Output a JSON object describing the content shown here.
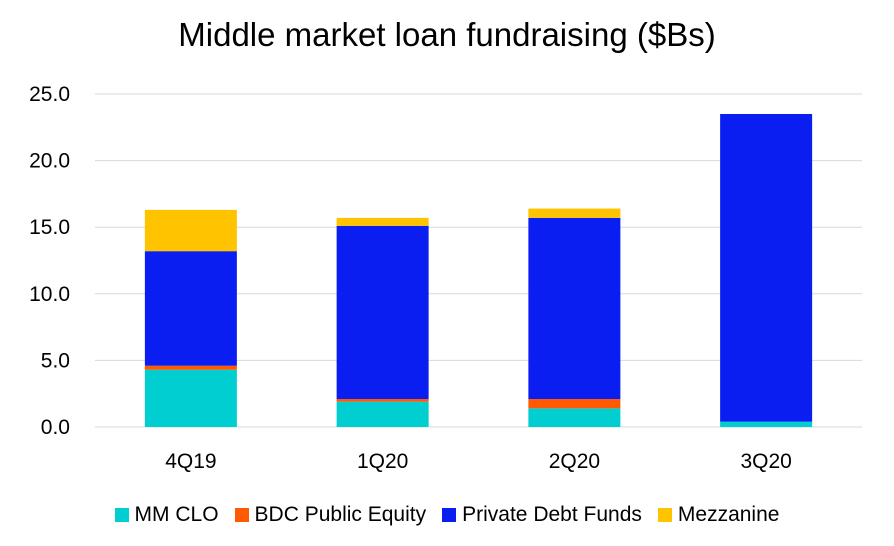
{
  "chart_data": {
    "type": "bar",
    "stacked": true,
    "title": "Middle market loan fundraising ($Bs)",
    "xlabel": "",
    "ylabel": "",
    "categories": [
      "4Q19",
      "1Q20",
      "2Q20",
      "3Q20"
    ],
    "ylim": [
      0,
      25
    ],
    "yticks": [
      "0.0",
      "5.0",
      "10.0",
      "15.0",
      "20.0",
      "25.0"
    ],
    "grid": true,
    "legend_position": "bottom",
    "series": [
      {
        "name": "MM CLO",
        "color": "#00CED1",
        "values": [
          4.3,
          1.9,
          1.4,
          0.4
        ]
      },
      {
        "name": "BDC Public Equity",
        "color": "#FF5A00",
        "values": [
          0.3,
          0.2,
          0.7,
          0.0
        ]
      },
      {
        "name": "Private Debt Funds",
        "color": "#0A1EF2",
        "values": [
          8.6,
          13.0,
          13.6,
          23.1
        ]
      },
      {
        "name": "Mezzanine",
        "color": "#FFC300",
        "values": [
          3.1,
          0.6,
          0.7,
          0.0
        ]
      }
    ]
  }
}
